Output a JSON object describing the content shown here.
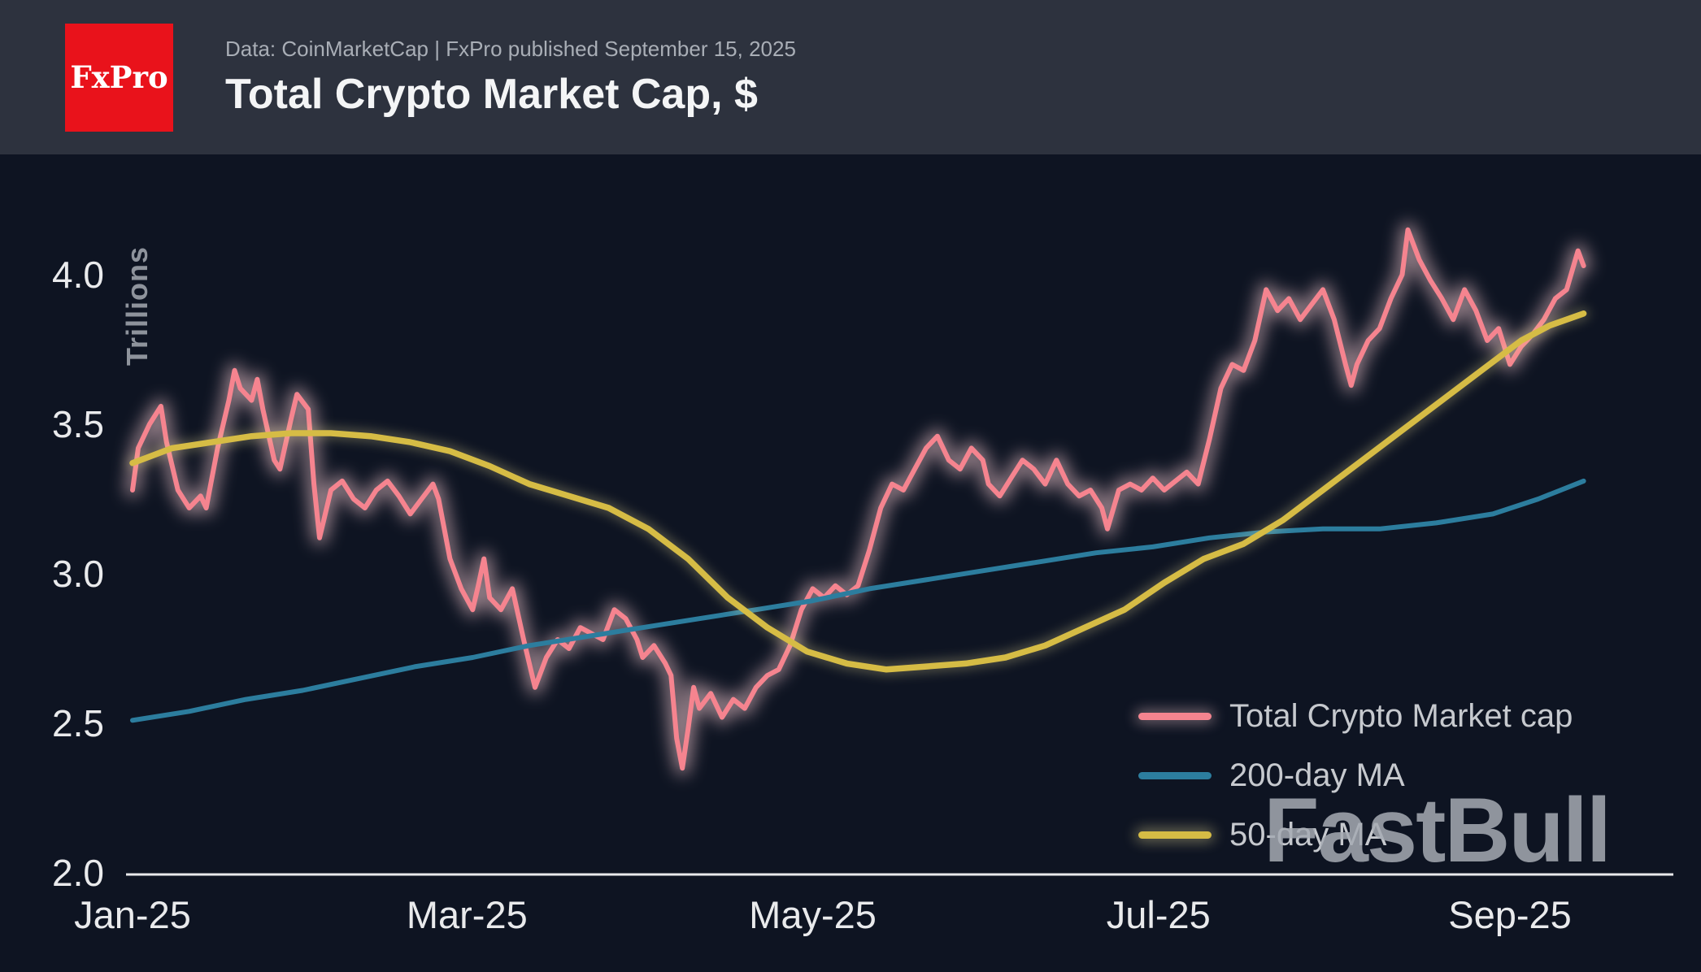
{
  "header": {
    "logo_text": "FxPro",
    "source_line": "Data: CoinMarketCap | FxPro published September 15, 2025",
    "title": "Total Crypto Market Cap, $"
  },
  "watermark": "FastBull",
  "colors": {
    "background": "#0e1422",
    "header_background": "#2d323e",
    "accent_red": "#e9121b",
    "axis_text": "#e9eaec",
    "muted_text": "#a9aeb6",
    "legend_text": "#c6c9ce",
    "watermark_text": "#a6abb3",
    "market_cap_line": "#f5848f",
    "ma200_line": "#2c7d9e",
    "ma50_line": "#d6bc45"
  },
  "chart_data": {
    "type": "line",
    "title": "Total Crypto Market Cap, $",
    "xlabel": "",
    "ylabel": "Trillions",
    "x_unit": "days since 2025-01-01",
    "x_range": [
      0,
      256
    ],
    "ylim": [
      2.0,
      4.2
    ],
    "y_ticks": [
      2.0,
      2.5,
      3.0,
      3.5,
      4.0
    ],
    "x_tick_days": [
      0,
      59,
      120,
      181,
      243
    ],
    "x_tick_labels": [
      "Jan-25",
      "Mar-25",
      "May-25",
      "Jul-25",
      "Sep-25"
    ],
    "grid": false,
    "legend_position": "bottom-right",
    "series": [
      {
        "name": "Total Crypto Market cap",
        "color": "#f5848f",
        "glow_color": "#ffd3d8",
        "points": [
          [
            0,
            3.28
          ],
          [
            1,
            3.42
          ],
          [
            3,
            3.5
          ],
          [
            5,
            3.56
          ],
          [
            6,
            3.44
          ],
          [
            8,
            3.28
          ],
          [
            10,
            3.22
          ],
          [
            12,
            3.26
          ],
          [
            13,
            3.22
          ],
          [
            15,
            3.42
          ],
          [
            17,
            3.58
          ],
          [
            18,
            3.68
          ],
          [
            19,
            3.62
          ],
          [
            21,
            3.58
          ],
          [
            22,
            3.65
          ],
          [
            23,
            3.55
          ],
          [
            25,
            3.38
          ],
          [
            26,
            3.35
          ],
          [
            28,
            3.52
          ],
          [
            29,
            3.6
          ],
          [
            31,
            3.55
          ],
          [
            32,
            3.3
          ],
          [
            33,
            3.12
          ],
          [
            35,
            3.28
          ],
          [
            37,
            3.31
          ],
          [
            39,
            3.25
          ],
          [
            41,
            3.22
          ],
          [
            43,
            3.28
          ],
          [
            45,
            3.31
          ],
          [
            47,
            3.26
          ],
          [
            49,
            3.2
          ],
          [
            51,
            3.25
          ],
          [
            53,
            3.3
          ],
          [
            54,
            3.25
          ],
          [
            56,
            3.05
          ],
          [
            58,
            2.95
          ],
          [
            60,
            2.88
          ],
          [
            61,
            2.96
          ],
          [
            62,
            3.05
          ],
          [
            63,
            2.92
          ],
          [
            65,
            2.88
          ],
          [
            67,
            2.95
          ],
          [
            69,
            2.78
          ],
          [
            71,
            2.62
          ],
          [
            73,
            2.72
          ],
          [
            75,
            2.78
          ],
          [
            77,
            2.75
          ],
          [
            79,
            2.82
          ],
          [
            81,
            2.8
          ],
          [
            83,
            2.78
          ],
          [
            85,
            2.88
          ],
          [
            87,
            2.85
          ],
          [
            89,
            2.78
          ],
          [
            90,
            2.72
          ],
          [
            92,
            2.76
          ],
          [
            94,
            2.7
          ],
          [
            95,
            2.66
          ],
          [
            96,
            2.45
          ],
          [
            97,
            2.35
          ],
          [
            98,
            2.48
          ],
          [
            99,
            2.62
          ],
          [
            100,
            2.55
          ],
          [
            102,
            2.6
          ],
          [
            104,
            2.52
          ],
          [
            106,
            2.58
          ],
          [
            108,
            2.55
          ],
          [
            110,
            2.62
          ],
          [
            112,
            2.66
          ],
          [
            114,
            2.68
          ],
          [
            116,
            2.76
          ],
          [
            118,
            2.88
          ],
          [
            120,
            2.95
          ],
          [
            122,
            2.92
          ],
          [
            124,
            2.96
          ],
          [
            126,
            2.93
          ],
          [
            128,
            2.96
          ],
          [
            130,
            3.08
          ],
          [
            132,
            3.22
          ],
          [
            134,
            3.3
          ],
          [
            136,
            3.28
          ],
          [
            138,
            3.35
          ],
          [
            140,
            3.42
          ],
          [
            142,
            3.46
          ],
          [
            144,
            3.38
          ],
          [
            146,
            3.35
          ],
          [
            148,
            3.42
          ],
          [
            150,
            3.38
          ],
          [
            151,
            3.3
          ],
          [
            153,
            3.26
          ],
          [
            155,
            3.32
          ],
          [
            157,
            3.38
          ],
          [
            159,
            3.35
          ],
          [
            161,
            3.3
          ],
          [
            163,
            3.38
          ],
          [
            165,
            3.3
          ],
          [
            167,
            3.26
          ],
          [
            169,
            3.28
          ],
          [
            171,
            3.22
          ],
          [
            172,
            3.15
          ],
          [
            174,
            3.28
          ],
          [
            176,
            3.3
          ],
          [
            178,
            3.28
          ],
          [
            180,
            3.32
          ],
          [
            182,
            3.28
          ],
          [
            184,
            3.31
          ],
          [
            186,
            3.34
          ],
          [
            188,
            3.3
          ],
          [
            190,
            3.45
          ],
          [
            192,
            3.62
          ],
          [
            194,
            3.7
          ],
          [
            196,
            3.68
          ],
          [
            198,
            3.78
          ],
          [
            200,
            3.95
          ],
          [
            202,
            3.88
          ],
          [
            204,
            3.92
          ],
          [
            206,
            3.85
          ],
          [
            208,
            3.9
          ],
          [
            210,
            3.95
          ],
          [
            212,
            3.85
          ],
          [
            214,
            3.7
          ],
          [
            215,
            3.63
          ],
          [
            216,
            3.7
          ],
          [
            218,
            3.78
          ],
          [
            220,
            3.82
          ],
          [
            222,
            3.92
          ],
          [
            224,
            4.0
          ],
          [
            225,
            4.15
          ],
          [
            227,
            4.05
          ],
          [
            229,
            3.98
          ],
          [
            231,
            3.92
          ],
          [
            233,
            3.85
          ],
          [
            235,
            3.95
          ],
          [
            237,
            3.88
          ],
          [
            239,
            3.78
          ],
          [
            241,
            3.82
          ],
          [
            243,
            3.7
          ],
          [
            245,
            3.76
          ],
          [
            247,
            3.8
          ],
          [
            249,
            3.85
          ],
          [
            251,
            3.92
          ],
          [
            253,
            3.95
          ],
          [
            255,
            4.08
          ],
          [
            256,
            4.03
          ]
        ]
      },
      {
        "name": "200-day MA",
        "color": "#2c7d9e",
        "glow_color": null,
        "points": [
          [
            0,
            2.51
          ],
          [
            10,
            2.54
          ],
          [
            20,
            2.58
          ],
          [
            30,
            2.61
          ],
          [
            40,
            2.65
          ],
          [
            50,
            2.69
          ],
          [
            60,
            2.72
          ],
          [
            70,
            2.76
          ],
          [
            80,
            2.79
          ],
          [
            90,
            2.82
          ],
          [
            100,
            2.85
          ],
          [
            110,
            2.88
          ],
          [
            120,
            2.91
          ],
          [
            130,
            2.95
          ],
          [
            140,
            2.98
          ],
          [
            150,
            3.01
          ],
          [
            160,
            3.04
          ],
          [
            170,
            3.07
          ],
          [
            180,
            3.09
          ],
          [
            190,
            3.12
          ],
          [
            200,
            3.14
          ],
          [
            210,
            3.15
          ],
          [
            220,
            3.15
          ],
          [
            230,
            3.17
          ],
          [
            240,
            3.2
          ],
          [
            248,
            3.25
          ],
          [
            256,
            3.31
          ]
        ]
      },
      {
        "name": "50-day MA",
        "color": "#d6bc45",
        "glow_color": "#f3e49c",
        "points": [
          [
            0,
            3.37
          ],
          [
            7,
            3.42
          ],
          [
            14,
            3.44
          ],
          [
            21,
            3.46
          ],
          [
            28,
            3.47
          ],
          [
            35,
            3.47
          ],
          [
            42,
            3.46
          ],
          [
            49,
            3.44
          ],
          [
            56,
            3.41
          ],
          [
            63,
            3.36
          ],
          [
            70,
            3.3
          ],
          [
            77,
            3.26
          ],
          [
            84,
            3.22
          ],
          [
            91,
            3.15
          ],
          [
            98,
            3.05
          ],
          [
            105,
            2.92
          ],
          [
            112,
            2.82
          ],
          [
            119,
            2.74
          ],
          [
            126,
            2.7
          ],
          [
            133,
            2.68
          ],
          [
            140,
            2.69
          ],
          [
            147,
            2.7
          ],
          [
            154,
            2.72
          ],
          [
            161,
            2.76
          ],
          [
            168,
            2.82
          ],
          [
            175,
            2.88
          ],
          [
            182,
            2.97
          ],
          [
            189,
            3.05
          ],
          [
            196,
            3.1
          ],
          [
            203,
            3.18
          ],
          [
            210,
            3.28
          ],
          [
            217,
            3.38
          ],
          [
            224,
            3.48
          ],
          [
            231,
            3.58
          ],
          [
            238,
            3.68
          ],
          [
            245,
            3.78
          ],
          [
            250,
            3.83
          ],
          [
            256,
            3.87
          ]
        ]
      }
    ]
  }
}
